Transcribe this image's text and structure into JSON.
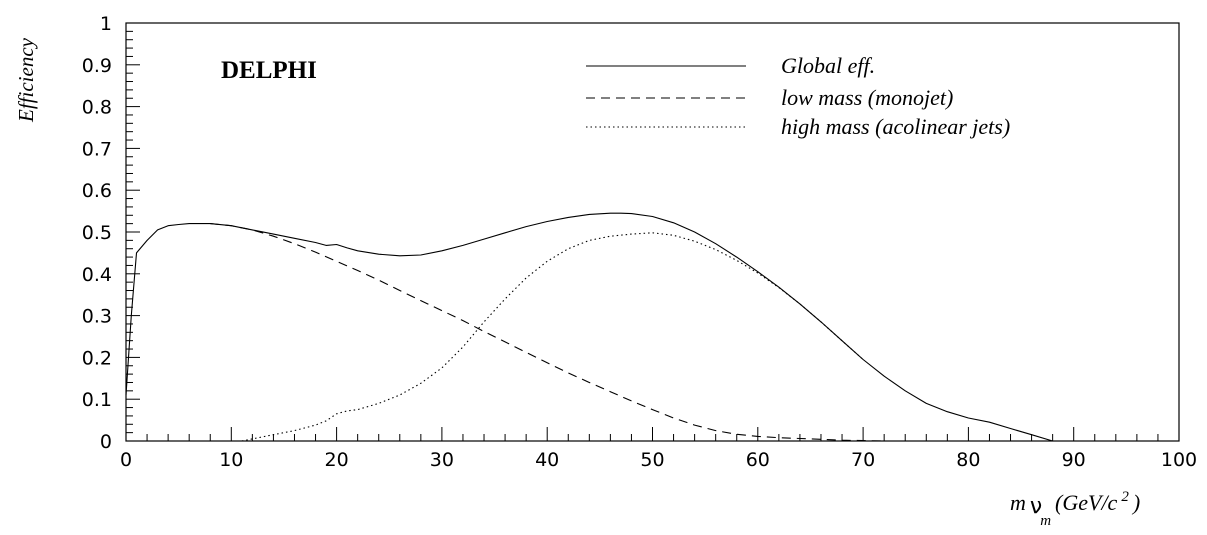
{
  "chart_data": {
    "type": "line",
    "experiment_label": "DELPHI",
    "ylabel": "Efficiency",
    "xlabel": {
      "m": "m",
      "nu": "ν",
      "sub": "m",
      "units": "(GeV/c",
      "sup": "2",
      "close": ")"
    },
    "xlim": [
      0,
      100
    ],
    "ylim": [
      0,
      1
    ],
    "xticks": [
      0,
      10,
      20,
      30,
      40,
      50,
      60,
      70,
      80,
      90,
      100
    ],
    "xtick_labels": [
      "0",
      "10",
      "20",
      "30",
      "40",
      "50",
      "60",
      "70",
      "80",
      "90",
      "100"
    ],
    "yticks": [
      0,
      0.1,
      0.2,
      0.3,
      0.4,
      0.5,
      0.6,
      0.7,
      0.8,
      0.9,
      1
    ],
    "ytick_labels": [
      "0",
      "0.1",
      "0.2",
      "0.3",
      "0.4",
      "0.5",
      "0.6",
      "0.7",
      "0.8",
      "0.9",
      "1"
    ],
    "grid": false,
    "legend_position": "top-right",
    "series": [
      {
        "name": "Global eff.",
        "style": "solid",
        "x": [
          0,
          0.5,
          1,
          2,
          3,
          4,
          5,
          6,
          7,
          8,
          10,
          12,
          14,
          16,
          18,
          19,
          20,
          21,
          22,
          24,
          26,
          28,
          30,
          32,
          34,
          36,
          38,
          40,
          42,
          44,
          46,
          47,
          48,
          50,
          52,
          54,
          56,
          58,
          60,
          62,
          64,
          66,
          68,
          70,
          72,
          74,
          76,
          78,
          80,
          82,
          84,
          86,
          88
        ],
        "y": [
          0.11,
          0.3,
          0.45,
          0.48,
          0.505,
          0.515,
          0.518,
          0.52,
          0.52,
          0.52,
          0.515,
          0.505,
          0.495,
          0.485,
          0.475,
          0.468,
          0.47,
          0.462,
          0.455,
          0.447,
          0.443,
          0.445,
          0.455,
          0.468,
          0.483,
          0.498,
          0.513,
          0.525,
          0.535,
          0.542,
          0.545,
          0.545,
          0.544,
          0.537,
          0.522,
          0.5,
          0.472,
          0.44,
          0.405,
          0.368,
          0.328,
          0.285,
          0.24,
          0.195,
          0.155,
          0.12,
          0.09,
          0.07,
          0.055,
          0.045,
          0.03,
          0.015,
          0.0
        ]
      },
      {
        "name": "low mass (monojet)",
        "style": "dashed",
        "x": [
          8,
          10,
          12,
          14,
          16,
          18,
          20,
          22,
          24,
          26,
          28,
          30,
          32,
          34,
          36,
          38,
          40,
          42,
          44,
          46,
          48,
          50,
          52,
          54,
          56,
          58,
          60,
          62,
          64,
          66,
          68,
          70,
          72
        ],
        "y": [
          0.52,
          0.515,
          0.505,
          0.49,
          0.472,
          0.452,
          0.43,
          0.408,
          0.385,
          0.36,
          0.336,
          0.312,
          0.288,
          0.262,
          0.237,
          0.212,
          0.187,
          0.163,
          0.14,
          0.118,
          0.096,
          0.075,
          0.055,
          0.038,
          0.025,
          0.016,
          0.011,
          0.008,
          0.006,
          0.004,
          0.002,
          0.001,
          0.0
        ]
      },
      {
        "name": "high mass (acolinear jets)",
        "style": "dotted",
        "x": [
          11,
          12,
          14,
          16,
          18,
          19,
          20,
          21,
          22,
          24,
          26,
          28,
          30,
          32,
          34,
          36,
          38,
          40,
          42,
          44,
          46,
          48,
          50,
          52,
          54,
          56,
          58,
          60,
          62,
          64,
          66,
          68,
          70
        ],
        "y": [
          0.0,
          0.005,
          0.015,
          0.025,
          0.038,
          0.048,
          0.065,
          0.072,
          0.075,
          0.09,
          0.11,
          0.138,
          0.175,
          0.225,
          0.285,
          0.34,
          0.39,
          0.43,
          0.46,
          0.48,
          0.49,
          0.495,
          0.498,
          0.492,
          0.478,
          0.458,
          0.432,
          0.402,
          0.367,
          0.328,
          0.285,
          0.24,
          0.195
        ]
      }
    ]
  }
}
